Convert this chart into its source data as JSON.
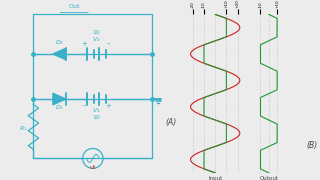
{
  "bg_color": "#ececec",
  "circuit_color": "#3ab0c8",
  "signal_color_input": "#cc2222",
  "signal_color_output": "#229933",
  "grid_color": "#aaaaaa",
  "text_color": "#444444",
  "fig_width": 3.2,
  "fig_height": 1.8,
  "dpi": 100,
  "label_A": "(A)",
  "label_B": "(B)",
  "y_ticks_top": [
    "+20",
    "+10",
    "-10",
    "-20"
  ],
  "y_ticks_bot": [
    "+10",
    "-10"
  ],
  "input_label": "Input",
  "output_label": "Output",
  "amplitude": 22,
  "clip_val": 10
}
